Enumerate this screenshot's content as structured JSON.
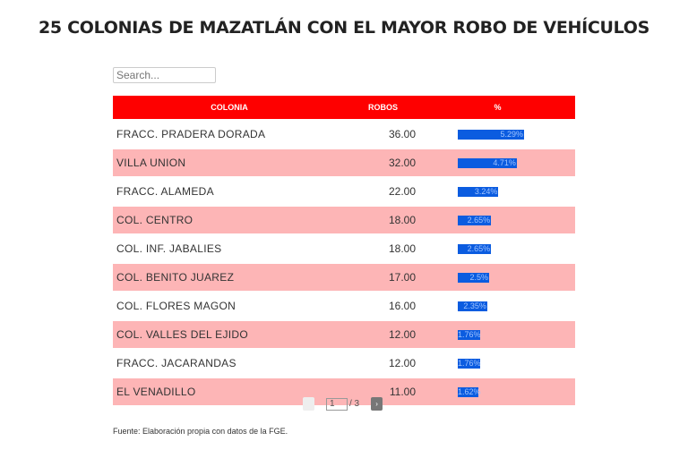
{
  "title": "25 COLONIAS DE MAZATLÁN CON EL MAYOR ROBO DE VEHÍCULOS",
  "search": {
    "placeholder": "Search..."
  },
  "table": {
    "headers": [
      "COLONIA",
      "ROBOS",
      "%"
    ],
    "rows": [
      {
        "colonia": "FRACC. PRADERA DORADA",
        "robos": "36.00",
        "pct": "5.29%",
        "pct_value": 5.29
      },
      {
        "colonia": "VILLA UNION",
        "robos": "32.00",
        "pct": "4.71%",
        "pct_value": 4.71
      },
      {
        "colonia": "FRACC. ALAMEDA",
        "robos": "22.00",
        "pct": "3.24%",
        "pct_value": 3.24
      },
      {
        "colonia": "COL. CENTRO",
        "robos": "18.00",
        "pct": "2.65%",
        "pct_value": 2.65
      },
      {
        "colonia": "COL. INF. JABALIES",
        "robos": "18.00",
        "pct": "2.65%",
        "pct_value": 2.65
      },
      {
        "colonia": "COL. BENITO JUAREZ",
        "robos": "17.00",
        "pct": "2.5%",
        "pct_value": 2.5
      },
      {
        "colonia": "COL. FLORES MAGON",
        "robos": "16.00",
        "pct": "2.35%",
        "pct_value": 2.35
      },
      {
        "colonia": "COL. VALLES DEL EJIDO",
        "robos": "12.00",
        "pct": "1.76%",
        "pct_value": 1.76
      },
      {
        "colonia": "FRACC. JACARANDAS",
        "robos": "12.00",
        "pct": "1.76%",
        "pct_value": 1.76
      },
      {
        "colonia": "EL VENADILLO",
        "robos": "11.00",
        "pct": "1.62%",
        "pct_value": 1.62
      }
    ]
  },
  "pager": {
    "current": "1",
    "total": "/ 3",
    "next": "›"
  },
  "source": "Fuente: Elaboración propia con datos de la FGE.",
  "colors": {
    "header": "#fe0000",
    "alt_row": "#fdb5b6",
    "bar": "#0b5ce0"
  }
}
